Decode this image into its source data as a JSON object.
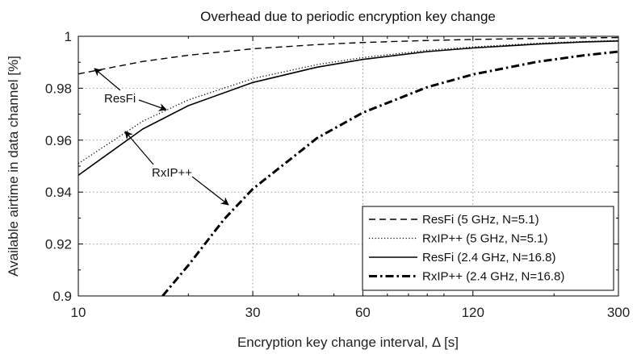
{
  "chart_data": {
    "type": "line",
    "title": "Overhead due to periodic encryption key change",
    "xlabel": "Encryption key change interval, Δ [s]",
    "ylabel": "Available airtime in data channel [%]",
    "xscale": "log",
    "xlim": [
      10,
      300
    ],
    "ylim": [
      0.9,
      1.0
    ],
    "xticks": [
      10,
      30,
      60,
      120,
      300
    ],
    "xtick_labels": [
      "10",
      "30",
      "60",
      "120",
      "300"
    ],
    "yticks": [
      0.9,
      0.92,
      0.94,
      0.96,
      0.98,
      1.0
    ],
    "ytick_labels": [
      "0.9",
      "0.92",
      "0.94",
      "0.96",
      "0.98",
      "1"
    ],
    "grid": true,
    "legend_position": "bottom-right",
    "series": [
      {
        "name": "ResFi (5 GHz, N=5.1)",
        "style": "dashed",
        "x": [
          10,
          15,
          20,
          30,
          45,
          60,
          90,
          120,
          180,
          240,
          300
        ],
        "y": [
          0.9855,
          0.9903,
          0.9927,
          0.9952,
          0.9968,
          0.9976,
          0.9984,
          0.9988,
          0.9992,
          0.9994,
          0.9995
        ]
      },
      {
        "name": "RxIP++ (5 GHz, N=5.1)",
        "style": "dotted",
        "x": [
          10,
          15,
          20,
          30,
          45,
          60,
          90,
          120,
          180,
          240,
          300
        ],
        "y": [
          0.951,
          0.9673,
          0.9755,
          0.9837,
          0.9891,
          0.9918,
          0.9946,
          0.9959,
          0.9973,
          0.998,
          0.9984
        ]
      },
      {
        "name": "ResFi (2.4 GHz, N=16.8)",
        "style": "solid",
        "x": [
          10,
          15,
          20,
          30,
          45,
          60,
          90,
          120,
          180,
          240,
          300
        ],
        "y": [
          0.9465,
          0.9643,
          0.9733,
          0.9822,
          0.9881,
          0.9911,
          0.9941,
          0.9955,
          0.997,
          0.9978,
          0.9982
        ]
      },
      {
        "name": "RxIP++ (2.4 GHz, N=16.8)",
        "style": "dash-dot",
        "x": [
          17,
          20,
          25,
          30,
          45,
          60,
          90,
          120,
          180,
          240,
          300
        ],
        "y": [
          0.9,
          0.9118,
          0.9294,
          0.9412,
          0.9608,
          0.9706,
          0.9804,
          0.9853,
          0.9902,
          0.9926,
          0.9941
        ]
      }
    ],
    "annotations": [
      {
        "text": "ResFi",
        "points_to": "ResFi (5 GHz) and ResFi (2.4 GHz)"
      },
      {
        "text": "RxIP++",
        "points_to": "RxIP++ (5 GHz) and RxIP++ (2.4 GHz)"
      }
    ]
  }
}
